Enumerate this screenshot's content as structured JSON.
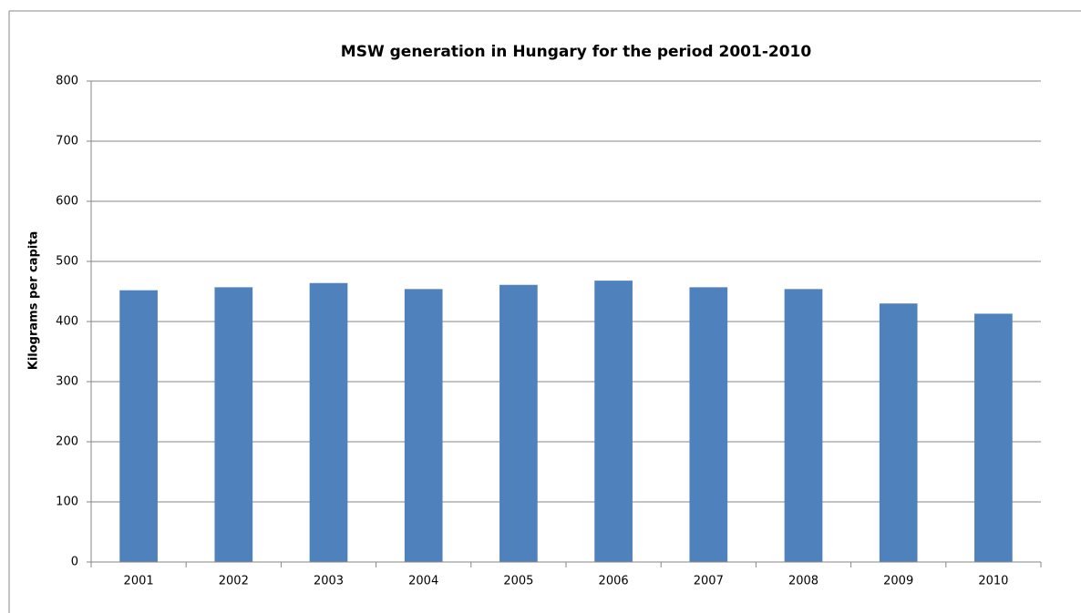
{
  "chart_data": {
    "type": "bar",
    "title": "MSW generation in Hungary for the period 2001-2010",
    "y_label": "Kilograms per capita",
    "categories": [
      "2001",
      "2002",
      "2003",
      "2004",
      "2005",
      "2006",
      "2007",
      "2008",
      "2009",
      "2010"
    ],
    "values": [
      452,
      457,
      464,
      454,
      461,
      468,
      457,
      454,
      430,
      413
    ],
    "color": "#4f81bd",
    "ylim": [
      0,
      800
    ],
    "yticks": [
      0,
      100,
      200,
      300,
      400,
      500,
      600,
      700,
      800
    ],
    "grid": true
  }
}
